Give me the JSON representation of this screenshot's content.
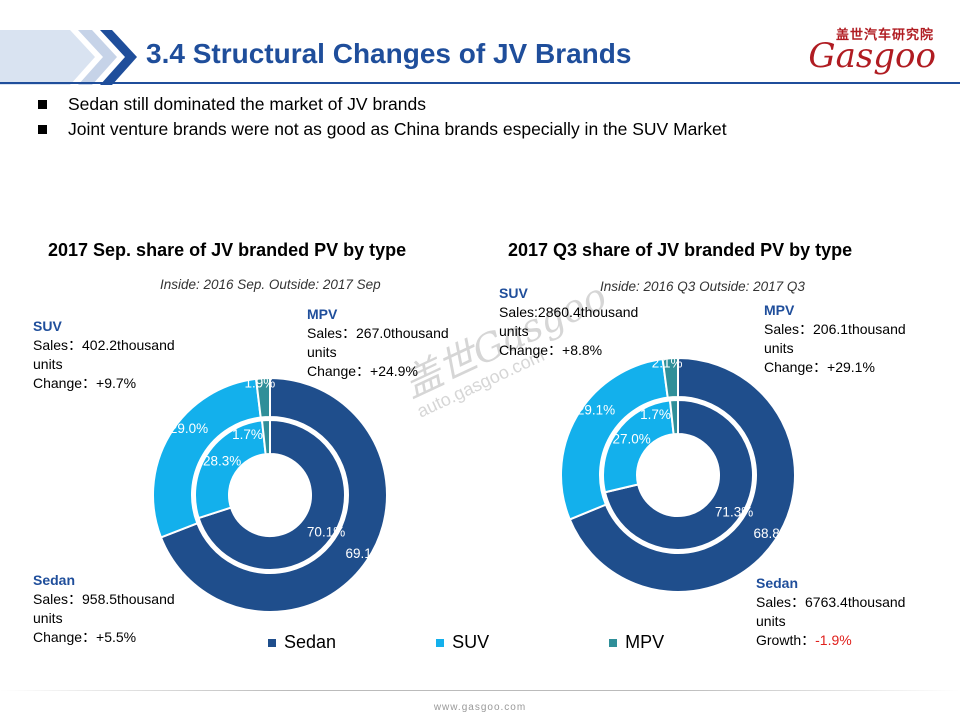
{
  "header": {
    "title": "3.4 Structural Changes of JV Brands",
    "logo_cn": "盖世汽车研究院",
    "logo_en": "Gasgoo"
  },
  "bullets": [
    "Sedan still dominated  the market  of JV brands",
    "Joint venture brands were not as good as China brands especially in the SUV Market"
  ],
  "colors": {
    "sedan": "#1f4e8c",
    "suv": "#13b0ec",
    "mpv": "#2f8f99",
    "title": "#1f4e9b",
    "negative": "#e0201c"
  },
  "watermark": {
    "cn": "盖世",
    "en": "Gasgoo",
    "url": "auto.gasgoo.com"
  },
  "chart_data": [
    {
      "type": "donut",
      "title": "2017 Sep. share of JV branded PV by type",
      "subtitle": "Inside: 2016 Sep.  Outside: 2017 Sep",
      "categories": [
        "Sedan",
        "SUV",
        "MPV"
      ],
      "series": [
        {
          "name": "Inside",
          "values": [
            70.1,
            28.3,
            1.7
          ],
          "labels": [
            "70.1%",
            "28.3%",
            "1.7%"
          ]
        },
        {
          "name": "Outside",
          "values": [
            69.1,
            29.0,
            1.9
          ],
          "labels": [
            "69.1%",
            "29.0%",
            "1.9%"
          ]
        }
      ],
      "annotations": {
        "suv": {
          "name": "SUV",
          "sales": "Sales：402.2thousand",
          "units": "units",
          "change": "Change：+9.7%"
        },
        "mpv": {
          "name": "MPV",
          "sales": "Sales：267.0thousand",
          "units": "units",
          "change": "Change：+24.9%"
        },
        "sedan": {
          "name": "Sedan",
          "sales": "Sales：958.5thousand",
          "units": "units",
          "change": "Change：+5.5%"
        }
      }
    },
    {
      "type": "donut",
      "title": "2017 Q3 share of JV branded PV by type",
      "subtitle": "Inside: 2016 Q3  Outside: 2017 Q3",
      "categories": [
        "Sedan",
        "SUV",
        "MPV"
      ],
      "series": [
        {
          "name": "Inside",
          "values": [
            71.3,
            27.0,
            1.7
          ],
          "labels": [
            "71.3%",
            "27.0%",
            "1.7%"
          ]
        },
        {
          "name": "Outside",
          "values": [
            68.8,
            29.1,
            2.1
          ],
          "labels": [
            "68.8%",
            "29.1%",
            "2.1%"
          ]
        }
      ],
      "annotations": {
        "suv": {
          "name": "SUV",
          "sales": "Sales:2860.4thousand",
          "units": "units",
          "change": "Change：+8.8%"
        },
        "mpv": {
          "name": "MPV",
          "sales": "Sales：206.1thousand",
          "units": "units",
          "change": "Change：+29.1%"
        },
        "sedan": {
          "name": "Sedan",
          "sales": "Sales：6763.4thousand",
          "units": "units",
          "change_label": "Growth：",
          "change_value": "-1.9%"
        }
      }
    }
  ],
  "legend": [
    "Sedan",
    "SUV",
    "MPV"
  ],
  "footer": "www.gasgoo.com"
}
